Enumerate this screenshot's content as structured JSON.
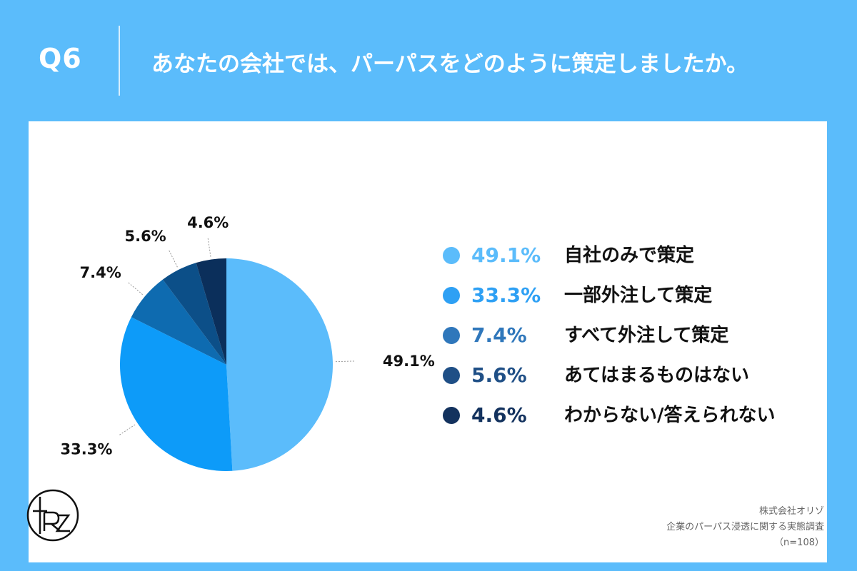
{
  "header": {
    "q_label": "Q6",
    "question": "あなたの会社では、パーパスをどのように策定しましたか。"
  },
  "chart_data": {
    "type": "pie",
    "categories": [
      "自社のみで策定",
      "一部外注して策定",
      "すべて外注して策定",
      "あてはまるものはない",
      "わからない/答えられない"
    ],
    "values": [
      49.1,
      33.3,
      7.4,
      5.6,
      4.6
    ],
    "labels": [
      "49.1%",
      "33.3%",
      "7.4%",
      "5.6%",
      "4.6%"
    ],
    "colors": [
      "#5bbcfb",
      "#0d9bf9",
      "#0e6bb0",
      "#0c4f88",
      "#0b2f5b"
    ],
    "legend_colors": [
      "#5bbcfb",
      "#2ea0f4",
      "#2f77bb",
      "#1f4f86",
      "#13325e"
    ]
  },
  "footer": {
    "company": "株式会社オリゾ",
    "survey": "企業のパーパス浸透に関する実態調査",
    "sample": "（n=108）"
  },
  "logo": {
    "icon": "rz-logo-icon"
  }
}
